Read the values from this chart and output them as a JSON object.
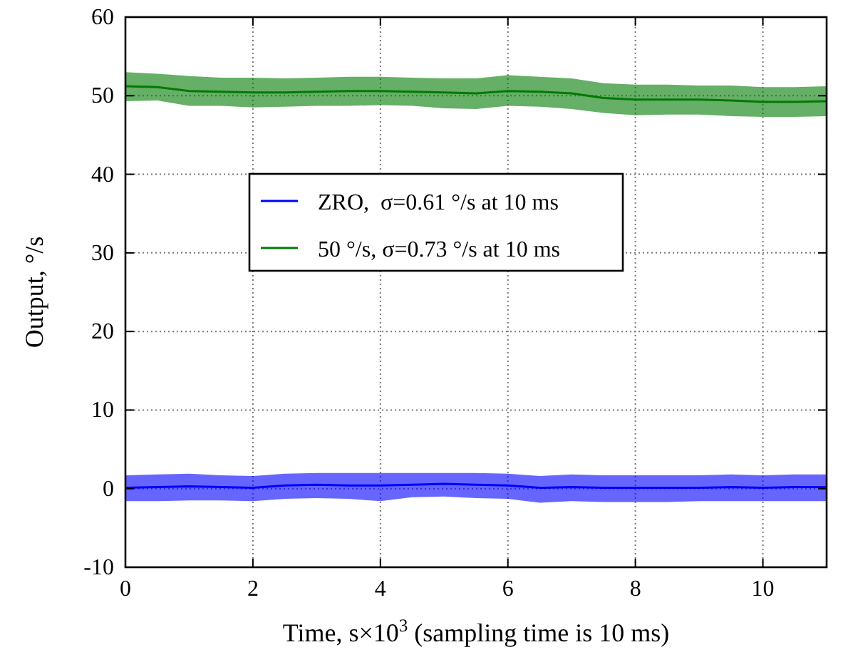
{
  "chart_data": {
    "type": "line",
    "xlabel": "Time, s×10$^{3}$ (sampling time is 10 ms)",
    "ylabel": "Output, °/s",
    "x": [
      0,
      0.5,
      1,
      1.5,
      2,
      2.5,
      3,
      3.5,
      4,
      4.5,
      5,
      5.5,
      6,
      6.5,
      7,
      7.5,
      8,
      8.5,
      9,
      9.5,
      10,
      10.5,
      11
    ],
    "xlim": [
      0,
      11
    ],
    "xticks": [
      0,
      2,
      4,
      6,
      8,
      10
    ],
    "ylim": [
      -10,
      60
    ],
    "yticks": [
      -10,
      0,
      10,
      20,
      30,
      40,
      50,
      60
    ],
    "grid": true,
    "legend": "center",
    "marker": "none",
    "series": [
      {
        "name": "ZRO,  σ=0.61 °/s at 10 ms",
        "color": "#0000ff",
        "values": [
          0.1,
          0.2,
          0.3,
          0.2,
          0.1,
          0.4,
          0.5,
          0.4,
          0.4,
          0.5,
          0.6,
          0.5,
          0.4,
          0.1,
          0.2,
          0.1,
          0.1,
          0.1,
          0.1,
          0.2,
          0.1,
          0.2,
          0.2
        ],
        "lower": [
          -1.6,
          -1.6,
          -1.5,
          -1.5,
          -1.6,
          -1.3,
          -1.2,
          -1.3,
          -1.6,
          -1.1,
          -1.0,
          -1.2,
          -1.3,
          -1.8,
          -1.6,
          -1.7,
          -1.7,
          -1.7,
          -1.6,
          -1.6,
          -1.6,
          -1.6,
          -1.6
        ],
        "upper": [
          1.7,
          1.8,
          1.9,
          1.7,
          1.6,
          1.9,
          2.0,
          2.0,
          2.0,
          2.0,
          2.0,
          2.0,
          1.9,
          1.6,
          1.8,
          1.7,
          1.7,
          1.7,
          1.7,
          1.8,
          1.7,
          1.8,
          1.8
        ]
      },
      {
        "name": "50 °/s, σ=0.73 °/s at 10 ms",
        "color": "#007a00",
        "values": [
          51.2,
          51.1,
          50.6,
          50.5,
          50.4,
          50.4,
          50.5,
          50.6,
          50.6,
          50.5,
          50.4,
          50.3,
          50.6,
          50.5,
          50.3,
          49.7,
          49.5,
          49.5,
          49.5,
          49.4,
          49.2,
          49.2,
          49.3
        ],
        "lower": [
          49.3,
          49.4,
          48.7,
          48.7,
          48.5,
          48.6,
          48.7,
          48.7,
          48.8,
          48.7,
          48.4,
          48.3,
          48.7,
          48.6,
          48.3,
          47.8,
          47.5,
          47.6,
          47.6,
          47.4,
          47.3,
          47.3,
          47.4
        ],
        "upper": [
          53.0,
          52.8,
          52.5,
          52.3,
          52.3,
          52.2,
          52.3,
          52.4,
          52.4,
          52.3,
          52.2,
          52.2,
          52.6,
          52.4,
          52.2,
          51.6,
          51.4,
          51.4,
          51.3,
          51.3,
          51.1,
          51.1,
          51.2
        ]
      }
    ]
  }
}
